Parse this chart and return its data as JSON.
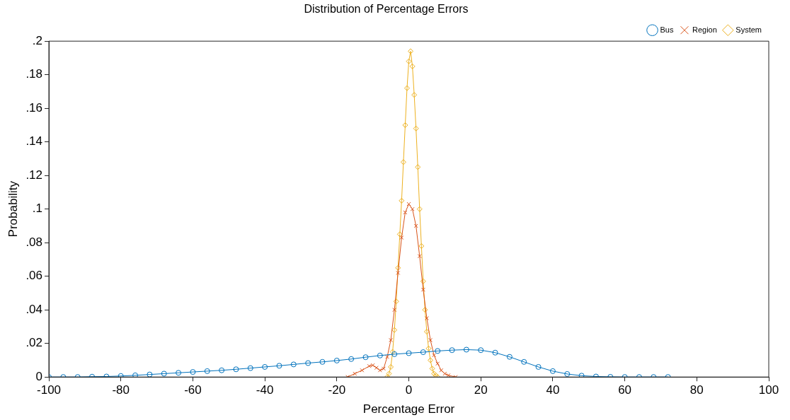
{
  "chart_data": {
    "type": "line",
    "title": "Distribution of Percentage Errors",
    "xlabel": "Percentage Error",
    "ylabel": "Probability",
    "xlim": [
      -100,
      100
    ],
    "xticks": [
      -100,
      -80,
      -60,
      -40,
      -20,
      0,
      20,
      40,
      60,
      80,
      100
    ],
    "ylim": [
      0,
      0.2
    ],
    "yticks": [
      {
        "value": 0,
        "label": "0"
      },
      {
        "value": 0.02,
        "label": ".02"
      },
      {
        "value": 0.04,
        "label": ".04"
      },
      {
        "value": 0.06,
        "label": ".06"
      },
      {
        "value": 0.08,
        "label": ".08"
      },
      {
        "value": 0.1,
        "label": ".1"
      },
      {
        "value": 0.12,
        "label": ".12"
      },
      {
        "value": 0.14,
        "label": ".14"
      },
      {
        "value": 0.16,
        "label": ".16"
      },
      {
        "value": 0.18,
        "label": ".18"
      },
      {
        "value": 0.2,
        "label": ".2"
      }
    ],
    "grid": false,
    "legend": "top right",
    "series": [
      {
        "name": "Bus",
        "color": "#0072bd",
        "marker": "circle",
        "x": [
          -100,
          -96,
          -92,
          -88,
          -84,
          -80,
          -76,
          -72,
          -68,
          -64,
          -60,
          -56,
          -52,
          -48,
          -44,
          -40,
          -36,
          -32,
          -28,
          -24,
          -20,
          -16,
          -12,
          -8,
          -4,
          0,
          4,
          8,
          12,
          16,
          20,
          24,
          28,
          32,
          36,
          40,
          44,
          48,
          52,
          56,
          60,
          64,
          68,
          72
        ],
        "values": [
          0,
          0,
          0,
          0.0002,
          0.0003,
          0.0006,
          0.001,
          0.0015,
          0.002,
          0.0025,
          0.003,
          0.0035,
          0.004,
          0.0046,
          0.0053,
          0.006,
          0.0067,
          0.0075,
          0.0083,
          0.009,
          0.0098,
          0.0107,
          0.0118,
          0.0128,
          0.0136,
          0.0142,
          0.0148,
          0.0155,
          0.016,
          0.0163,
          0.016,
          0.0145,
          0.012,
          0.009,
          0.006,
          0.0035,
          0.0018,
          0.0008,
          0.0003,
          0.0001,
          0,
          0,
          0,
          0
        ]
      },
      {
        "name": "Region",
        "color": "#d95319",
        "marker": "cross",
        "x": [
          -17,
          -15,
          -13,
          -11,
          -10,
          -9,
          -8,
          -7,
          -6,
          -5,
          -4,
          -3,
          -2,
          -1,
          0,
          1,
          2,
          3,
          4,
          5,
          6,
          7,
          8,
          9,
          10,
          11,
          13
        ],
        "values": [
          0,
          0.002,
          0.004,
          0.0065,
          0.007,
          0.0055,
          0.004,
          0.005,
          0.012,
          0.022,
          0.04,
          0.062,
          0.083,
          0.098,
          0.103,
          0.1,
          0.09,
          0.072,
          0.052,
          0.035,
          0.022,
          0.013,
          0.008,
          0.004,
          0.002,
          0.001,
          0
        ]
      },
      {
        "name": "System",
        "color": "#edb120",
        "marker": "diamond",
        "x": [
          -6,
          -5.5,
          -5,
          -4.5,
          -4,
          -3.5,
          -3,
          -2.5,
          -2,
          -1.5,
          -1,
          -0.5,
          0,
          0.5,
          1,
          1.5,
          2,
          2.5,
          3,
          3.5,
          4,
          4.5,
          5,
          5.5,
          6,
          6.5,
          7,
          7.5,
          8
        ],
        "values": [
          0,
          0.002,
          0.006,
          0.015,
          0.028,
          0.045,
          0.065,
          0.085,
          0.105,
          0.128,
          0.15,
          0.172,
          0.188,
          0.194,
          0.185,
          0.168,
          0.148,
          0.125,
          0.1,
          0.078,
          0.057,
          0.04,
          0.027,
          0.017,
          0.01,
          0.005,
          0.002,
          0.001,
          0
        ]
      }
    ]
  }
}
